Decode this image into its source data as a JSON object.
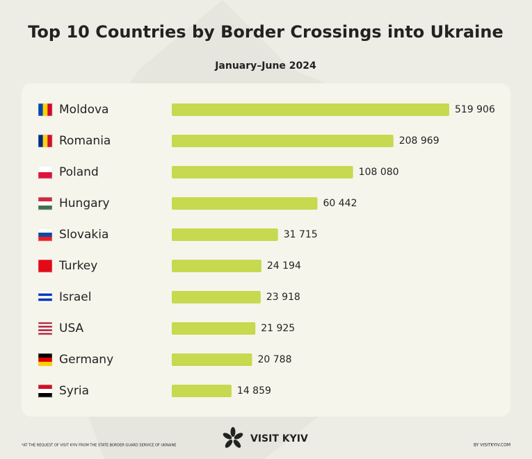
{
  "chart_data": {
    "type": "bar",
    "title": "Top 10 Countries by Border Crossings into Ukraine",
    "subtitle": "January–June 2024",
    "categories": [
      "Moldova",
      "Romania",
      "Poland",
      "Hungary",
      "Slovakia",
      "Turkey",
      "Israel",
      "USA",
      "Germany",
      "Syria"
    ],
    "values": [
      519906,
      208969,
      108080,
      60442,
      31715,
      24194,
      23918,
      21925,
      20788,
      14859
    ],
    "value_labels": [
      "519 906",
      "208 969",
      "108 080",
      "60 442",
      "31 715",
      "24 194",
      "23 918",
      "21 925",
      "20 788",
      "14 859"
    ],
    "color": "#c6d94f",
    "orientation": "horizontal",
    "log_scale": true,
    "xlim": [
      5600,
      520000
    ]
  },
  "footer": {
    "note": "*AT THE REQUEST OF VISIT KYIV FROM THE STATE BORDER GUARD SERVICE OF UKRAINE",
    "logo": "VISIT KYIV",
    "source": "BY VISITKYIV.COM"
  }
}
